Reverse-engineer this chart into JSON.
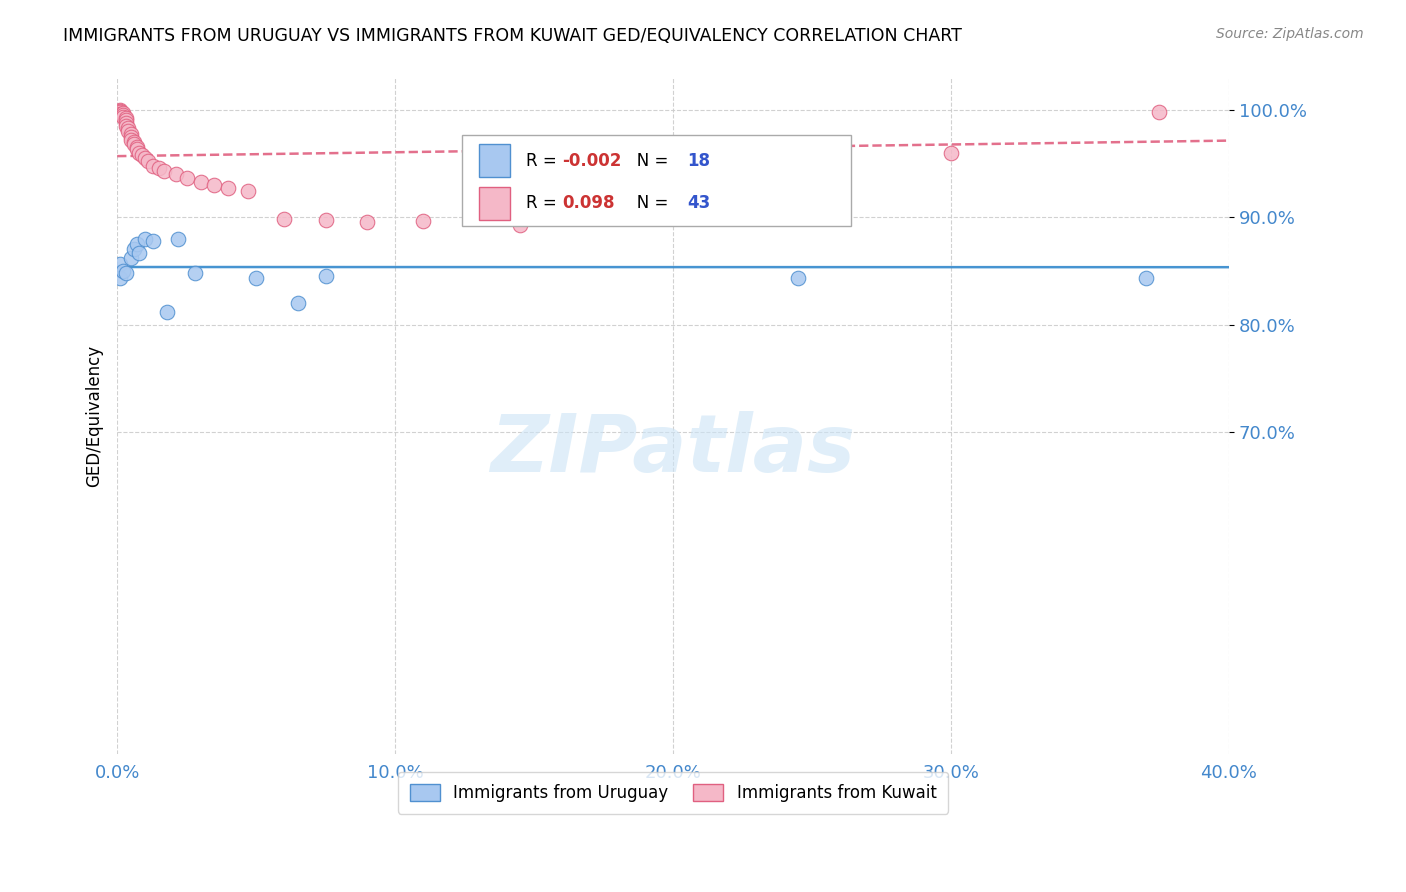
{
  "title": "IMMIGRANTS FROM URUGUAY VS IMMIGRANTS FROM KUWAIT GED/EQUIVALENCY CORRELATION CHART",
  "source": "Source: ZipAtlas.com",
  "ylabel": "GED/Equivalency",
  "watermark": "ZIPatlas",
  "xlim": [
    0.0,
    0.4
  ],
  "ylim": [
    0.4,
    1.03
  ],
  "yticks": [
    1.0,
    0.9,
    0.8,
    0.7
  ],
  "ytick_labels": [
    "100.0%",
    "90.0%",
    "80.0%",
    "70.0%"
  ],
  "xticks": [
    0.0,
    0.1,
    0.2,
    0.3,
    0.4
  ],
  "xtick_labels": [
    "0.0%",
    "10.0%",
    "20.0%",
    "30.0%",
    "40.0%"
  ],
  "uruguay_R": -0.002,
  "uruguay_N": 18,
  "kuwait_R": 0.098,
  "kuwait_N": 43,
  "uruguay_color": "#a8c8f0",
  "kuwait_color": "#f5b8c8",
  "uruguay_edge_color": "#5090d0",
  "kuwait_edge_color": "#e06080",
  "uruguay_trend_color": "#3388cc",
  "kuwait_trend_color": "#e06080",
  "grid_color": "#cccccc",
  "title_fontsize": 12.5,
  "tick_label_color": "#4488cc",
  "background_color": "#ffffff",
  "legend_r_uruguay_color": "#cc3333",
  "legend_r_kuwait_color": "#cc3333",
  "legend_n_color": "#3355cc",
  "uruguay_x": [
    0.001,
    0.001,
    0.002,
    0.003,
    0.005,
    0.006,
    0.007,
    0.008,
    0.01,
    0.013,
    0.018,
    0.022,
    0.028,
    0.05,
    0.065,
    0.075,
    0.245,
    0.37
  ],
  "uruguay_y": [
    0.843,
    0.856,
    0.85,
    0.848,
    0.862,
    0.87,
    0.875,
    0.867,
    0.88,
    0.878,
    0.812,
    0.88,
    0.848,
    0.843,
    0.82,
    0.845,
    0.843,
    0.843
  ],
  "kuwait_x": [
    0.001,
    0.001,
    0.001,
    0.001,
    0.002,
    0.002,
    0.002,
    0.003,
    0.003,
    0.003,
    0.003,
    0.004,
    0.004,
    0.005,
    0.005,
    0.005,
    0.006,
    0.006,
    0.007,
    0.007,
    0.008,
    0.009,
    0.01,
    0.011,
    0.013,
    0.015,
    0.017,
    0.021,
    0.025,
    0.03,
    0.035,
    0.04,
    0.047,
    0.06,
    0.075,
    0.09,
    0.11,
    0.145,
    0.17,
    0.2,
    0.25,
    0.3,
    0.375
  ],
  "kuwait_y": [
    1.0,
    0.999,
    0.998,
    0.996,
    0.997,
    0.995,
    0.993,
    0.992,
    0.99,
    0.988,
    0.985,
    0.983,
    0.98,
    0.977,
    0.975,
    0.972,
    0.97,
    0.968,
    0.965,
    0.963,
    0.96,
    0.958,
    0.955,
    0.952,
    0.948,
    0.946,
    0.943,
    0.94,
    0.936,
    0.933,
    0.93,
    0.927,
    0.924,
    0.898,
    0.897,
    0.895,
    0.896,
    0.893,
    0.943,
    0.947,
    0.952,
    0.96,
    0.998
  ]
}
